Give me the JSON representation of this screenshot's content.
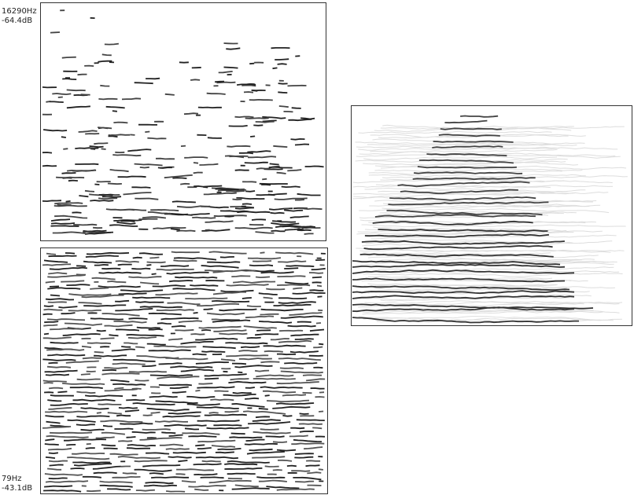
{
  "labels": {
    "top_frequency": "16290Hz",
    "top_level": "-64.4dB",
    "bottom_frequency": "79Hz",
    "bottom_level": "-43.1dB"
  }
}
